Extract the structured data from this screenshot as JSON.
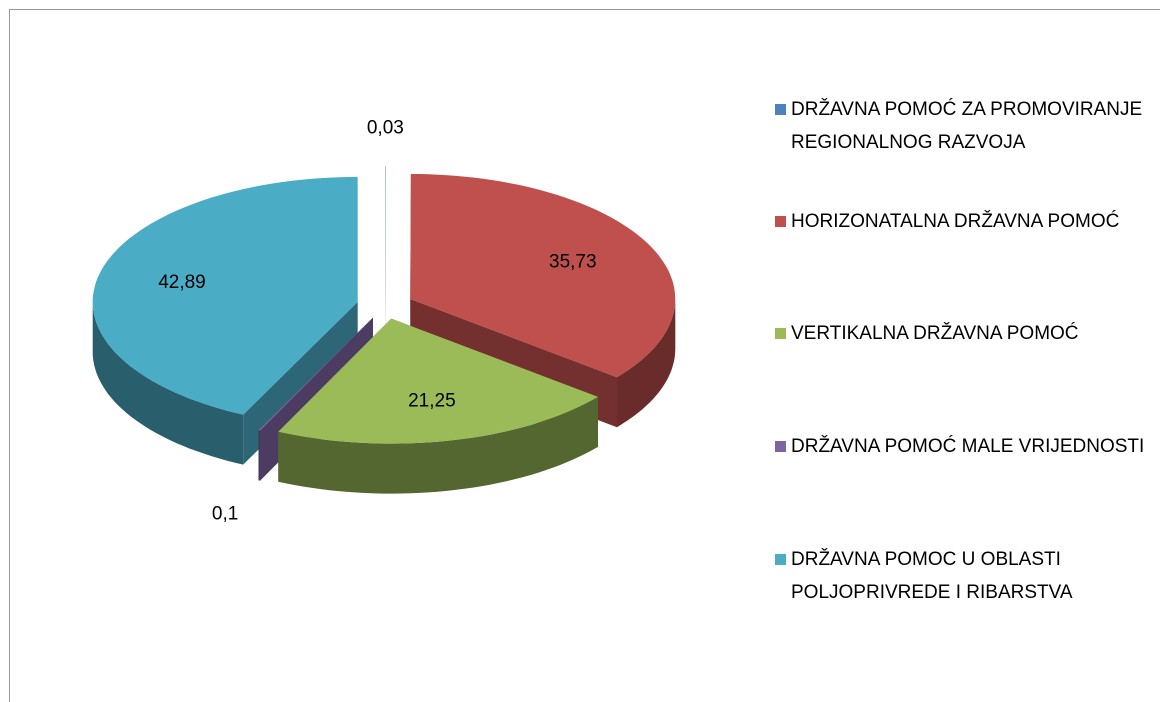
{
  "chart_data": {
    "type": "pie",
    "categories": [
      "DRŽAVNA POMOĆ ZA PROMOVIRANJE REGIONALNOG RAZVOJA",
      "HORIZONATALNA DRŽAVNA POMOĆ",
      "VERTIKALNA DRŽAVNA POMOĆ",
      "DRŽAVNA POMOĆ MALE VRIJEDNOSTI",
      "DRŽAVNA POMOC U OBLASTI POLJOPRIVREDE I RIBARSTVA"
    ],
    "values": [
      0.03,
      35.73,
      21.25,
      0.1,
      42.89
    ],
    "value_labels": [
      "0,03",
      "35,73",
      "21,25",
      "0,1",
      "42,89"
    ],
    "colors": [
      "#4f81bd",
      "#c0504d",
      "#9bbb59",
      "#8064a2",
      "#4bacc6"
    ],
    "legend": "right"
  }
}
